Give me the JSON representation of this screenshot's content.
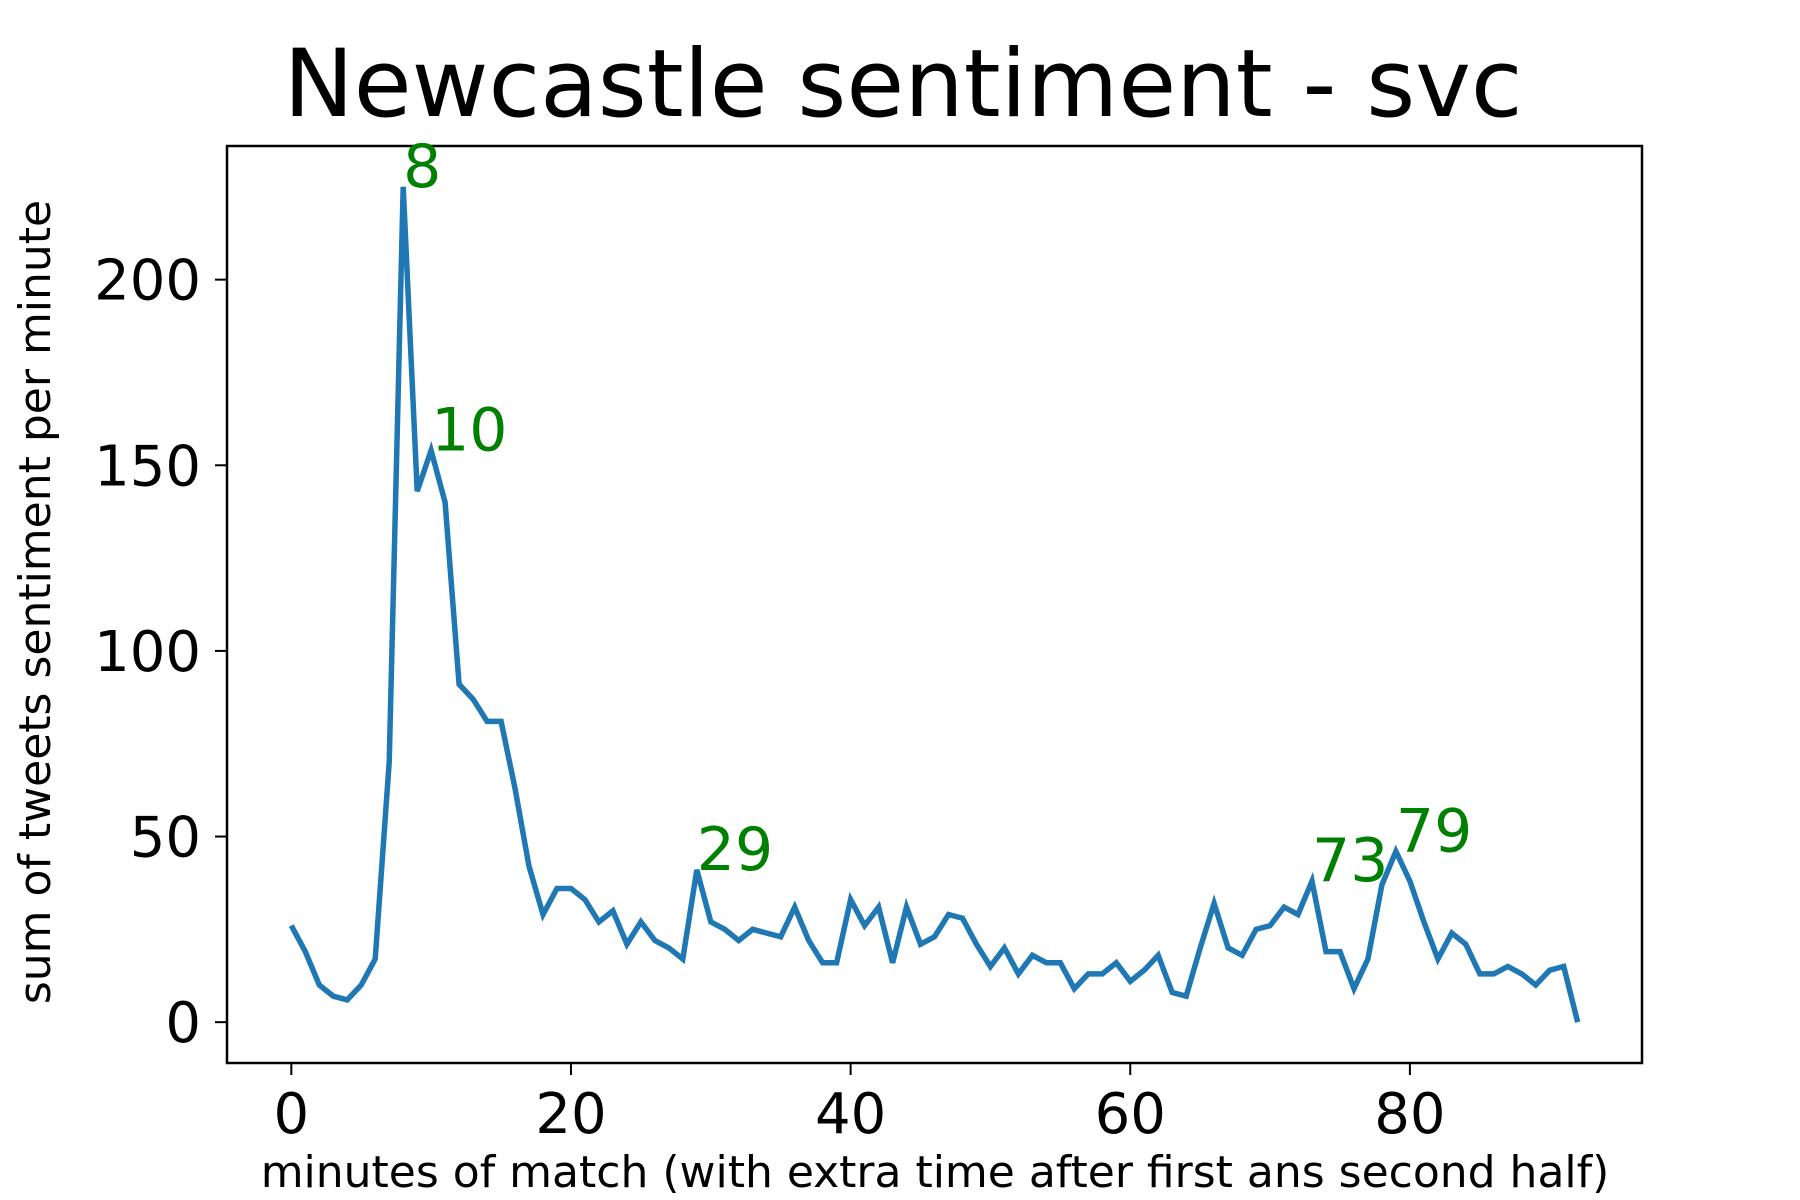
{
  "chart_data": {
    "type": "line",
    "title": "Newcastle sentiment - svc",
    "xlabel": "minutes of match (with extra time after first ans second half)",
    "ylabel": "sum of tweets sentiment per minute",
    "xlim": [
      -4.6,
      96.6
    ],
    "ylim": [
      -11,
      236
    ],
    "x_ticks": [
      0,
      20,
      40,
      60,
      80
    ],
    "y_ticks": [
      0,
      50,
      100,
      150,
      200
    ],
    "grid": false,
    "colors": {
      "line": "#1f77b4",
      "annotation": "#008000",
      "frame": "#000000"
    },
    "series": [
      {
        "x": [
          0,
          1,
          2,
          3,
          4,
          5,
          6,
          7,
          8,
          9,
          10,
          11,
          12,
          13,
          14,
          15,
          16,
          17,
          18,
          19,
          20,
          21,
          22,
          23,
          24,
          25,
          26,
          27,
          28,
          29,
          30,
          31,
          32,
          33,
          34,
          35,
          36,
          37,
          38,
          39,
          40,
          41,
          42,
          43,
          44,
          45,
          46,
          47,
          48,
          49,
          50,
          51,
          52,
          53,
          54,
          55,
          56,
          57,
          58,
          59,
          60,
          61,
          62,
          63,
          64,
          65,
          66,
          67,
          68,
          69,
          70,
          71,
          72,
          73,
          74,
          75,
          76,
          77,
          78,
          79,
          80,
          81,
          82,
          83,
          84,
          85,
          86,
          87,
          88,
          89,
          90,
          91,
          92
        ],
        "values": [
          26,
          19,
          10,
          7,
          6,
          10,
          17,
          70,
          225,
          143,
          154,
          140,
          91,
          87,
          81,
          81,
          63,
          42,
          29,
          36,
          36,
          33,
          27,
          30,
          21,
          27,
          22,
          20,
          17,
          41,
          27,
          25,
          22,
          25,
          24,
          23,
          31,
          22,
          16,
          16,
          33,
          26,
          31,
          16,
          31,
          21,
          23,
          29,
          28,
          21,
          15,
          20,
          13,
          18,
          16,
          16,
          9,
          13,
          13,
          16,
          11,
          14,
          18,
          8,
          7,
          20,
          32,
          20,
          18,
          25,
          26,
          31,
          29,
          38,
          19,
          19,
          9,
          17,
          37,
          46,
          38,
          27,
          17,
          24,
          21,
          13,
          13,
          15,
          13,
          10,
          14,
          15,
          0
        ]
      }
    ],
    "annotations": [
      {
        "label": "8",
        "x": 8,
        "y": 225
      },
      {
        "label": "10",
        "x": 10,
        "y": 154
      },
      {
        "label": "29",
        "x": 29,
        "y": 41
      },
      {
        "label": "73",
        "x": 73,
        "y": 38
      },
      {
        "label": "79",
        "x": 79,
        "y": 46
      }
    ]
  }
}
